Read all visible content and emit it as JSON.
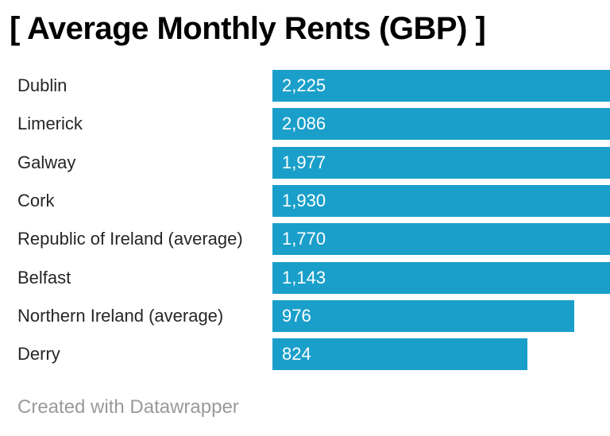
{
  "header": {
    "title": "[ Average Monthly Rents (GBP) ]"
  },
  "footer": {
    "credit": "Created with Datawrapper"
  },
  "colors": {
    "background": "#ffffff",
    "bar": "#1a9fca",
    "bar_value_text": "#ffffff",
    "category_text": "#262626",
    "title_text": "#000000",
    "credit_text": "#9a9a9a"
  },
  "chart_data": {
    "type": "bar",
    "orientation": "horizontal",
    "title": "[ Average Monthly Rents (GBP) ]",
    "categories": [
      "Dublin",
      "Limerick",
      "Galway",
      "Cork",
      "Republic of Ireland (average)",
      "Belfast",
      "Northern Ireland (average)",
      "Derry"
    ],
    "values": [
      2225,
      2086,
      1977,
      1930,
      1770,
      1143,
      976,
      824
    ],
    "value_labels": [
      "2,225",
      "2,086",
      "1,977",
      "1,930",
      "1,770",
      "1,143",
      "976",
      "824"
    ],
    "xlabel": "",
    "ylabel": "",
    "xlim": [
      0,
      2225
    ],
    "grid": false,
    "legend": false,
    "value_label_position": "inside-start",
    "layout_hint": "bars longer than plot area are clipped at the right edge of the image"
  }
}
